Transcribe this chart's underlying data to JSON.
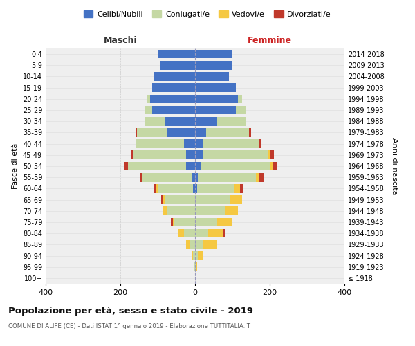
{
  "age_groups": [
    "100+",
    "95-99",
    "90-94",
    "85-89",
    "80-84",
    "75-79",
    "70-74",
    "65-69",
    "60-64",
    "55-59",
    "50-54",
    "45-49",
    "40-44",
    "35-39",
    "30-34",
    "25-29",
    "20-24",
    "15-19",
    "10-14",
    "5-9",
    "0-4"
  ],
  "birth_years": [
    "≤ 1918",
    "1919-1923",
    "1924-1928",
    "1929-1933",
    "1934-1938",
    "1939-1943",
    "1944-1948",
    "1949-1953",
    "1954-1958",
    "1959-1963",
    "1964-1968",
    "1969-1973",
    "1974-1978",
    "1979-1983",
    "1984-1988",
    "1989-1993",
    "1994-1998",
    "1999-2003",
    "2004-2008",
    "2009-2013",
    "2014-2018"
  ],
  "male": {
    "celibi": [
      0,
      0,
      0,
      0,
      0,
      0,
      0,
      0,
      5,
      10,
      25,
      25,
      30,
      75,
      80,
      115,
      120,
      115,
      110,
      95,
      100
    ],
    "coniugati": [
      0,
      2,
      5,
      15,
      30,
      55,
      75,
      80,
      95,
      130,
      155,
      140,
      130,
      80,
      55,
      20,
      10,
      0,
      0,
      0,
      0
    ],
    "vedovi": [
      0,
      0,
      5,
      10,
      15,
      5,
      10,
      5,
      5,
      0,
      0,
      0,
      0,
      0,
      0,
      0,
      0,
      0,
      0,
      0,
      0
    ],
    "divorziati": [
      0,
      0,
      0,
      0,
      0,
      5,
      0,
      5,
      5,
      8,
      10,
      8,
      0,
      5,
      0,
      0,
      0,
      0,
      0,
      0,
      0
    ]
  },
  "female": {
    "nubili": [
      0,
      0,
      0,
      0,
      0,
      0,
      0,
      0,
      5,
      8,
      15,
      20,
      20,
      30,
      60,
      110,
      115,
      110,
      90,
      100,
      100
    ],
    "coniugate": [
      0,
      2,
      8,
      20,
      35,
      60,
      80,
      95,
      100,
      155,
      185,
      175,
      150,
      115,
      75,
      25,
      10,
      0,
      0,
      0,
      0
    ],
    "vedove": [
      0,
      3,
      15,
      40,
      40,
      40,
      35,
      30,
      15,
      10,
      8,
      5,
      0,
      0,
      0,
      0,
      0,
      0,
      0,
      0,
      0
    ],
    "divorziate": [
      0,
      0,
      0,
      0,
      5,
      0,
      0,
      0,
      8,
      10,
      12,
      12,
      5,
      5,
      0,
      0,
      0,
      0,
      0,
      0,
      0
    ]
  },
  "colors": {
    "celibi": "#4472c4",
    "coniugati": "#c5d8a4",
    "vedovi": "#f5c842",
    "divorziati": "#c0392b"
  },
  "title": "Popolazione per età, sesso e stato civile - 2019",
  "subtitle": "COMUNE DI ALIFE (CE) - Dati ISTAT 1° gennaio 2019 - Elaborazione TUTTITALIA.IT",
  "xlabel_left": "Maschi",
  "xlabel_right": "Femmine",
  "ylabel_left": "Fasce di età",
  "ylabel_right": "Anni di nascita",
  "xlim": 400,
  "background_color": "#ffffff",
  "grid_color": "#cccccc",
  "legend_labels": [
    "Celibi/Nubili",
    "Coniugati/e",
    "Vedovi/e",
    "Divorziati/e"
  ]
}
